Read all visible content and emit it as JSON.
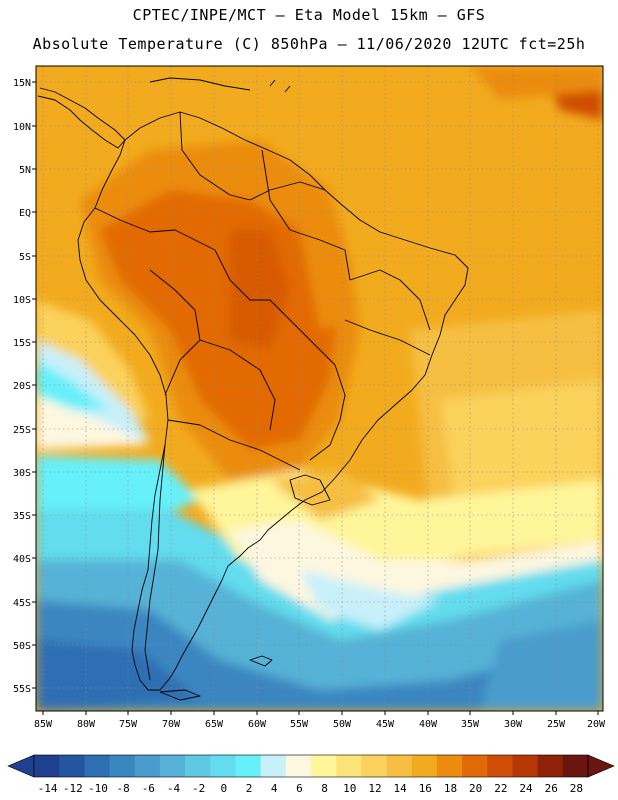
{
  "header": {
    "line1": "CPTEC/INPE/MCT –  Eta Model 15km – GFS",
    "line2": "Absolute Temperature (C) 850hPa – 11/06/2020 12UTC fct=25h"
  },
  "axes": {
    "lat_labels": [
      "15N",
      "10N",
      "5N",
      "EQ",
      "5S",
      "10S",
      "15S",
      "20S",
      "25S",
      "30S",
      "35S",
      "40S",
      "45S",
      "50S",
      "55S"
    ],
    "lon_labels": [
      "85W",
      "80W",
      "75W",
      "70W",
      "65W",
      "60W",
      "55W",
      "50W",
      "45W",
      "40W",
      "35W",
      "30W",
      "25W",
      "20W"
    ]
  },
  "colorbar": {
    "labels": [
      "-14",
      "-12",
      "-10",
      "-8",
      "-6",
      "-4",
      "-2",
      "0",
      "2",
      "4",
      "6",
      "8",
      "10",
      "12",
      "14",
      "16",
      "18",
      "20",
      "22",
      "24",
      "26",
      "28"
    ],
    "colors": [
      "#1f3f8f",
      "#2456a0",
      "#2e6eb2",
      "#3a86c1",
      "#4a9ccc",
      "#56b2d6",
      "#5fc8e2",
      "#62dcee",
      "#66f0fa",
      "#c8f0fa",
      "#fdf7e0",
      "#fff59a",
      "#fde47a",
      "#fbd25c",
      "#f6bf42",
      "#f2ab1e",
      "#eb8c10",
      "#e26a06",
      "#cf4e05",
      "#b53806",
      "#8e2209",
      "#6a1510"
    ]
  },
  "map": {
    "region": "South America",
    "domain_lat": [
      "15N",
      "57S"
    ],
    "domain_lon": [
      "86W",
      "20W"
    ]
  }
}
